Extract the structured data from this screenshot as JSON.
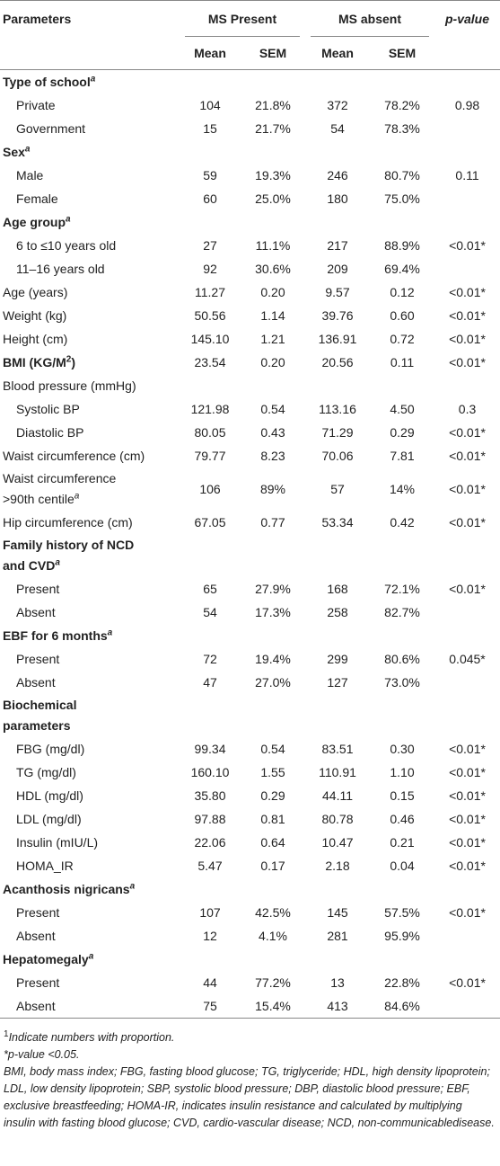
{
  "header": {
    "parameters": "Parameters",
    "ms_present": "MS Present",
    "ms_absent": "MS absent",
    "p_value": "p-value",
    "mean": "Mean",
    "sem": "SEM"
  },
  "rows": [
    {
      "label": "Type of school",
      "sup": "a",
      "section": true
    },
    {
      "label": "Private",
      "indent": true,
      "values": [
        "104",
        "21.8%",
        "372",
        "78.2%",
        "0.98"
      ]
    },
    {
      "label": "Government",
      "indent": true,
      "values": [
        "15",
        "21.7%",
        "54",
        "78.3%"
      ]
    },
    {
      "label": "Sex",
      "sup": "a",
      "section": true
    },
    {
      "label": "Male",
      "indent": true,
      "values": [
        "59",
        "19.3%",
        "246",
        "80.7%",
        "0.11"
      ]
    },
    {
      "label": "Female",
      "indent": true,
      "values": [
        "60",
        "25.0%",
        "180",
        "75.0%"
      ]
    },
    {
      "label": "Age group",
      "sup": "a",
      "section": true
    },
    {
      "label": "6 to ≤10 years old",
      "indent": true,
      "values": [
        "27",
        "11.1%",
        "217",
        "88.9%",
        "<0.01*"
      ]
    },
    {
      "label": "11–16 years old",
      "indent": true,
      "values": [
        "92",
        "30.6%",
        "209",
        "69.4%"
      ]
    },
    {
      "label": "Age (years)",
      "values": [
        "11.27",
        "0.20",
        "9.57",
        "0.12",
        "<0.01*"
      ]
    },
    {
      "label": "Weight (kg)",
      "values": [
        "50.56",
        "1.14",
        "39.76",
        "0.60",
        "<0.01*"
      ]
    },
    {
      "label": "Height (cm)",
      "values": [
        "145.10",
        "1.21",
        "136.91",
        "0.72",
        "<0.01*"
      ]
    },
    {
      "label": "BMI (KG/M",
      "sup": "2",
      "after": ")",
      "section": true,
      "values": [
        "23.54",
        "0.20",
        "20.56",
        "0.11",
        "<0.01*"
      ]
    },
    {
      "label": "Blood pressure (mmHg)"
    },
    {
      "label": "Systolic BP",
      "indent": true,
      "values": [
        "121.98",
        "0.54",
        "113.16",
        "4.50",
        "0.3"
      ]
    },
    {
      "label": "Diastolic BP",
      "indent": true,
      "values": [
        "80.05",
        "0.43",
        "71.29",
        "0.29",
        "<0.01*"
      ]
    },
    {
      "label": "Waist circumference (cm)",
      "values": [
        "79.77",
        "8.23",
        "70.06",
        "7.81",
        "<0.01*"
      ]
    },
    {
      "label": [
        "Waist circumference",
        ">90th centile"
      ],
      "sup": "a",
      "values": [
        "106",
        "89%",
        "57",
        "14%",
        "<0.01*"
      ]
    },
    {
      "label": "Hip circumference (cm)",
      "values": [
        "67.05",
        "0.77",
        "53.34",
        "0.42",
        "<0.01*"
      ]
    },
    {
      "label": [
        "Family history of NCD",
        "and CVD"
      ],
      "sup": "a",
      "section": true
    },
    {
      "label": "Present",
      "indent": true,
      "values": [
        "65",
        "27.9%",
        "168",
        "72.1%",
        "<0.01*"
      ]
    },
    {
      "label": "Absent",
      "indent": true,
      "values": [
        "54",
        "17.3%",
        "258",
        "82.7%"
      ]
    },
    {
      "label": "EBF for 6 months",
      "sup": "a",
      "section": true
    },
    {
      "label": "Present",
      "indent": true,
      "values": [
        "72",
        "19.4%",
        "299",
        "80.6%",
        "0.045*"
      ]
    },
    {
      "label": "Absent",
      "indent": true,
      "values": [
        "47",
        "27.0%",
        "127",
        "73.0%"
      ]
    },
    {
      "label": [
        "Biochemical",
        "parameters"
      ],
      "section": true
    },
    {
      "label": "FBG (mg/dl)",
      "indent": true,
      "values": [
        "99.34",
        "0.54",
        "83.51",
        "0.30",
        "<0.01*"
      ]
    },
    {
      "label": "TG (mg/dl)",
      "indent": true,
      "values": [
        "160.10",
        "1.55",
        "110.91",
        "1.10",
        "<0.01*"
      ]
    },
    {
      "label": "HDL (mg/dl)",
      "indent": true,
      "values": [
        "35.80",
        "0.29",
        "44.11",
        "0.15",
        "<0.01*"
      ]
    },
    {
      "label": "LDL (mg/dl)",
      "indent": true,
      "values": [
        "97.88",
        "0.81",
        "80.78",
        "0.46",
        "<0.01*"
      ]
    },
    {
      "label": "Insulin (mIU/L)",
      "indent": true,
      "values": [
        "22.06",
        "0.64",
        "10.47",
        "0.21",
        "<0.01*"
      ]
    },
    {
      "label": "HOMA_IR",
      "indent": true,
      "values": [
        "5.47",
        "0.17",
        "2.18",
        "0.04",
        "<0.01*"
      ]
    },
    {
      "label": "Acanthosis nigricans",
      "sup": "a",
      "section": true
    },
    {
      "label": "Present",
      "indent": true,
      "values": [
        "107",
        "42.5%",
        "145",
        "57.5%",
        "<0.01*"
      ]
    },
    {
      "label": "Absent",
      "indent": true,
      "values": [
        "12",
        "4.1%",
        "281",
        "95.9%"
      ]
    },
    {
      "label": "Hepatomegaly",
      "sup": "a",
      "section": true
    },
    {
      "label": "Present",
      "indent": true,
      "values": [
        "44",
        "77.2%",
        "13",
        "22.8%",
        "<0.01*"
      ]
    },
    {
      "label": "Absent",
      "indent": true,
      "values": [
        "75",
        "15.4%",
        "413",
        "84.6%"
      ]
    }
  ],
  "footnotes": {
    "note1_mark": "1",
    "note1": "Indicate numbers with proportion.",
    "note2": "*p-value <0.05.",
    "abbreviations": "BMI, body mass index; FBG, fasting blood glucose; TG, triglyceride; HDL, high density lipoprotein; LDL, low density lipoprotein; SBP, systolic blood pressure; DBP, diastolic blood pressure; EBF, exclusive breastfeeding; HOMA-IR, indicates insulin resistance and calculated by multiplying insulin with fasting blood glucose; CVD, cardio-vascular disease; NCD, non-communicabledisease."
  }
}
